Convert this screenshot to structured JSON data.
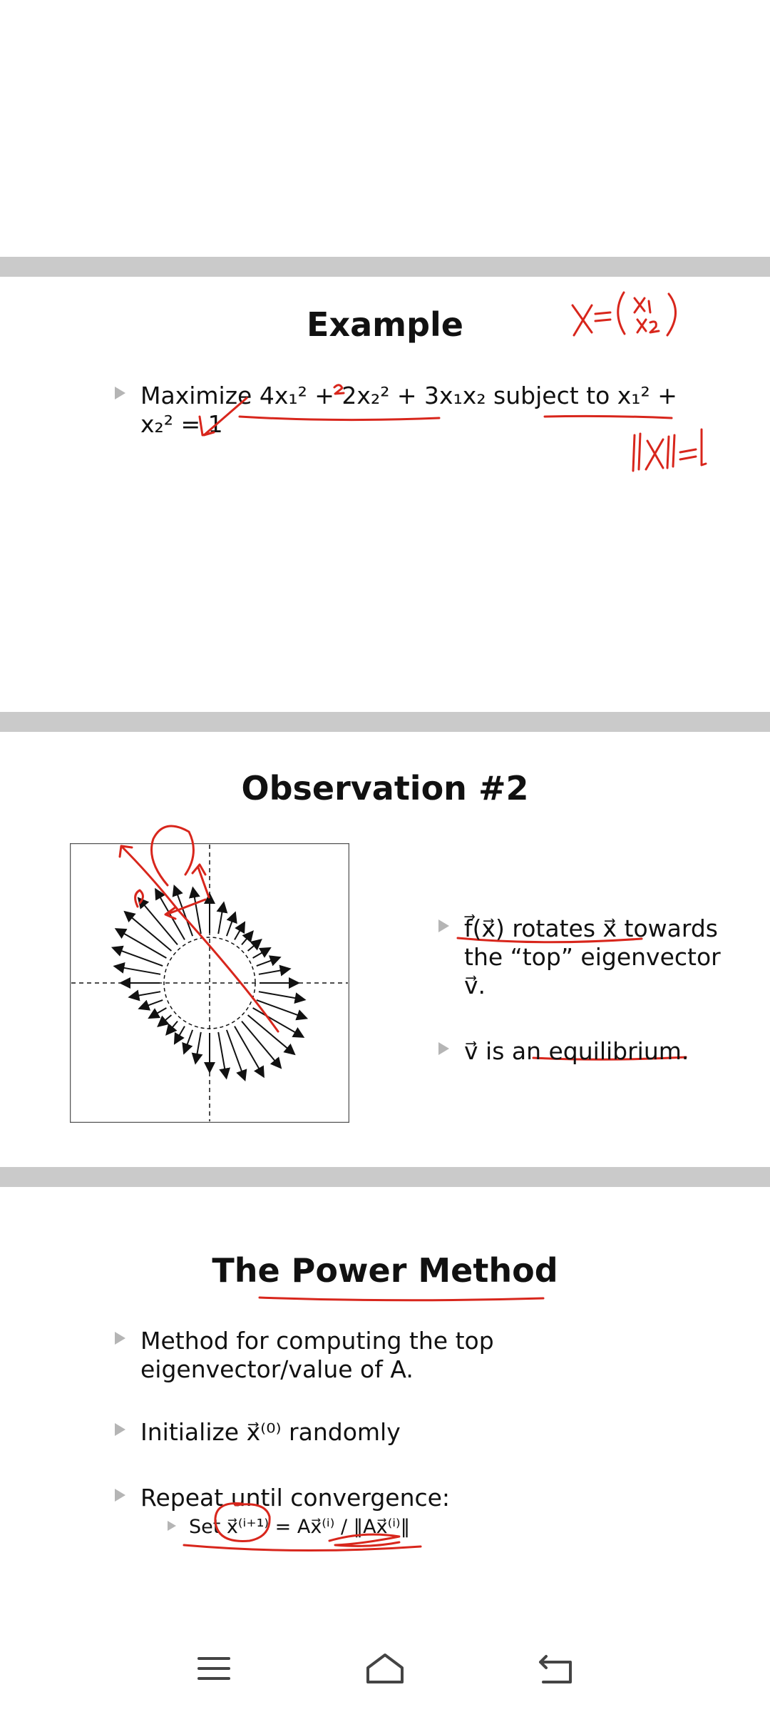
{
  "slides": [
    {
      "title": "Example",
      "bullets": [
        {
          "text": "Maximize 4x₁² + 2x₂² + 3x₁x₂ subject to x₁² + x₂² = 1"
        }
      ],
      "annotations": [
        "x = (x₁, x₂)",
        "‖x‖ = 1"
      ]
    },
    {
      "title": "Observation #2",
      "bullets": [
        {
          "text": "f⃗(x⃗) rotates x⃗ towards the “top” eigenvector v⃗."
        },
        {
          "text": "v⃗ is an equilibrium."
        }
      ]
    },
    {
      "title": "The Power Method",
      "bullets": [
        {
          "text": "Method for computing the top eigenvector/value of A."
        },
        {
          "text": "Initialize x⃗⁽⁰⁾ randomly"
        },
        {
          "text": "Repeat until convergence:"
        }
      ],
      "sub_bullets": [
        {
          "text": "Set x⃗⁽ⁱ⁺¹⁾ = Ax⃗⁽ⁱ⁾ / ‖Ax⃗⁽ⁱ⁾‖"
        }
      ]
    }
  ],
  "colors": {
    "ink": "#d8261c",
    "gap": "#cacaca",
    "bullet_marker": "#b5b5b5"
  },
  "nav": {
    "icons": [
      "menu-icon",
      "home-icon",
      "back-icon"
    ]
  }
}
